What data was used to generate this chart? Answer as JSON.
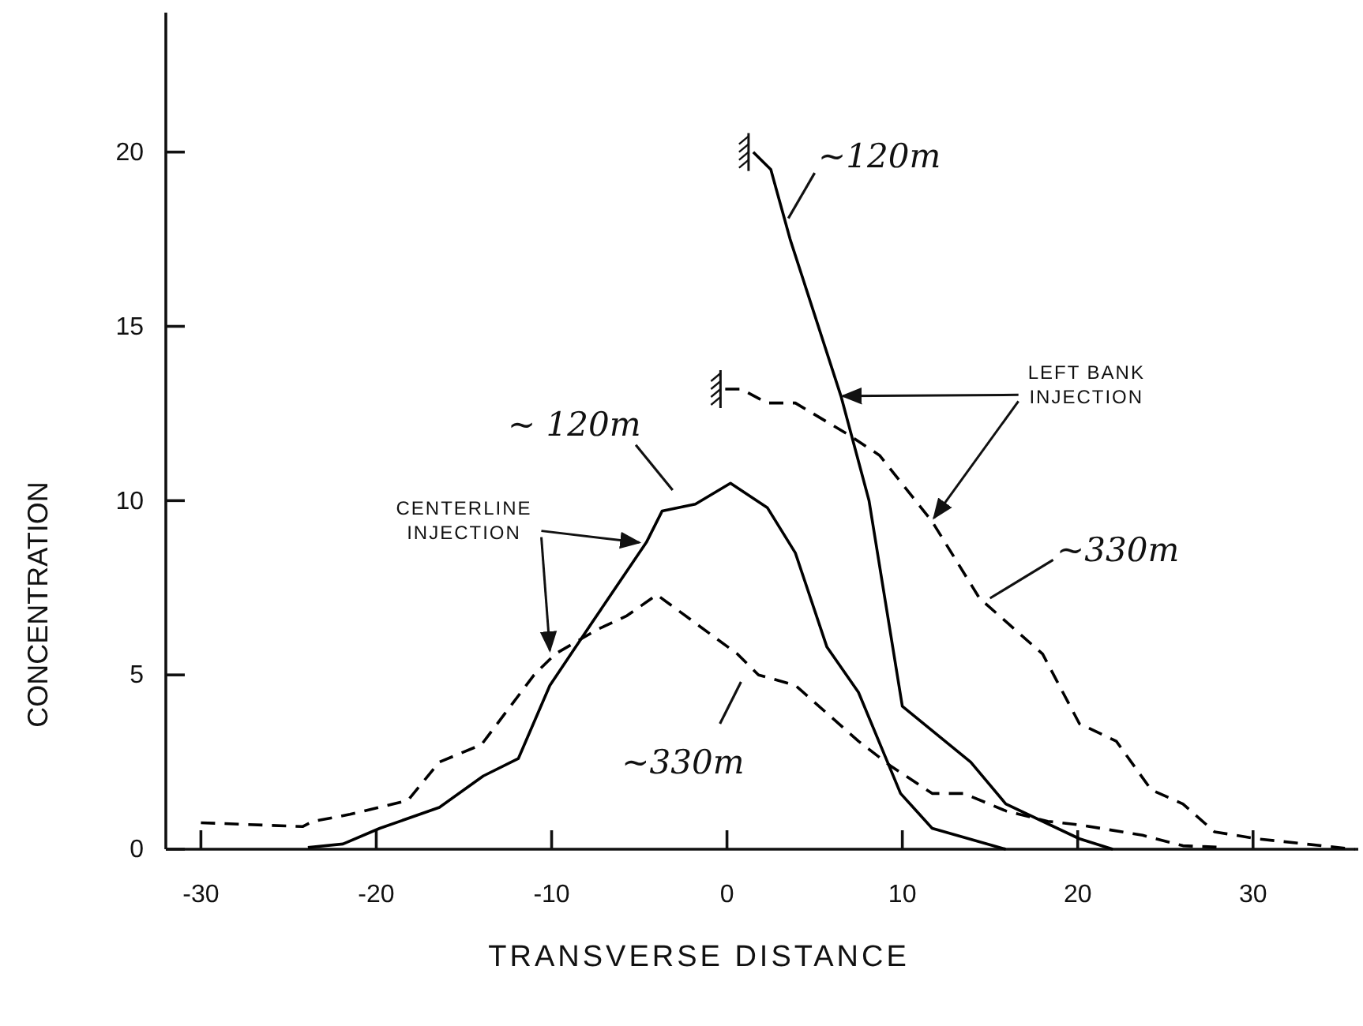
{
  "chart_data": {
    "type": "line",
    "xlabel": "TRANSVERSE DISTANCE",
    "ylabel": "CONCENTRATION",
    "xlim": [
      -32,
      36
    ],
    "ylim": [
      0,
      24
    ],
    "xticks": [
      -30,
      -20,
      -10,
      0,
      10,
      20,
      30
    ],
    "yticks": [
      0,
      5,
      10,
      15,
      20
    ],
    "grid": false,
    "marker": "none",
    "series": [
      {
        "name": "~ 120m",
        "color": "#000000",
        "line_style": "solid",
        "x": [
          -23.9,
          -21.9,
          -19.8,
          -16.4,
          -13.9,
          -11.9,
          -10.1,
          -7.7,
          -4.6,
          -3.7,
          -1.8,
          0.2,
          2.3,
          3.9,
          5.7,
          7.5,
          9.9,
          11.7,
          15.9
        ],
        "values": [
          0.05,
          0.15,
          0.6,
          1.2,
          2.1,
          2.6,
          4.7,
          6.5,
          8.8,
          9.7,
          9.9,
          10.5,
          9.8,
          8.5,
          5.8,
          4.5,
          1.6,
          0.6,
          0
        ]
      },
      {
        "name": "~330m",
        "color": "#000000",
        "line_style": "dashed",
        "x": [
          -30,
          -24.2,
          -23.6,
          -21.5,
          -18.2,
          -16.4,
          -14,
          -11,
          -9.8,
          -7.4,
          -5.7,
          -4,
          0.6,
          1.8,
          3.9,
          7.5,
          9.3,
          11.7,
          13.5,
          15.9,
          18.3,
          20.1,
          23.7,
          26,
          28.4
        ],
        "values": [
          0.76,
          0.65,
          0.8,
          1.0,
          1.4,
          2.5,
          3.0,
          5.0,
          5.6,
          6.3,
          6.7,
          7.3,
          5.6,
          5.0,
          4.7,
          3.1,
          2.4,
          1.6,
          1.6,
          1.1,
          0.8,
          0.7,
          0.4,
          0.1,
          0.05
        ]
      },
      {
        "name": "~120m",
        "color": "#000000",
        "line_style": "solid",
        "x": [
          1.5,
          2.5,
          3.6,
          6.5,
          8.1,
          10,
          13.9,
          15.9,
          20.1,
          22
        ],
        "values": [
          20,
          19.5,
          17.5,
          13,
          10,
          4.1,
          2.5,
          1.3,
          0.3,
          0
        ]
      },
      {
        "name": "~330m",
        "color": "#000000",
        "line_style": "dashed",
        "x": [
          -0.1,
          0.8,
          2.3,
          3.9,
          6.9,
          8.7,
          11.7,
          14.4,
          18,
          20.1,
          22.2,
          24.2,
          26,
          27.8,
          30.2,
          35.8
        ],
        "values": [
          13.2,
          13.2,
          12.8,
          12.8,
          11.9,
          11.3,
          9.4,
          7.2,
          5.6,
          3.6,
          3.1,
          1.7,
          1.3,
          0.5,
          0.3,
          0
        ]
      }
    ],
    "annotations": [
      {
        "text": "CENTERLINE INJECTION",
        "x": -5,
        "y": 8.8
      },
      {
        "text": "LEFT BANK INJECTION",
        "x": 6.6,
        "y": 13
      }
    ]
  }
}
